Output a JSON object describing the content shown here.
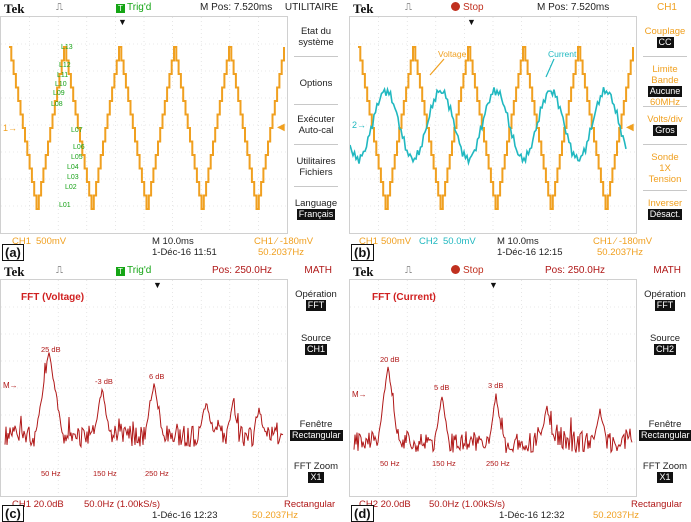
{
  "panels": {
    "a": {
      "label": "(a)",
      "tek": "Tek",
      "trig": "Trig'd",
      "mpos": "M Pos: 7.520ms",
      "side_title": "UTILITAIRE",
      "menu": [
        {
          "text": "Etat du",
          "text2": "système"
        },
        {
          "text": "Options"
        },
        {
          "text": "Exécuter",
          "text2": "Auto-cal"
        },
        {
          "text": "Utilitaires",
          "text2": "Fichiers"
        },
        {
          "text": "Language",
          "hl": "Français"
        }
      ],
      "bottom": {
        "ch1": "CH1",
        "ch1val": "500mV",
        "time": "M 10.0ms",
        "trigset": "CH1 ⁄ -180mV",
        "date": "1-Déc-16 11:51",
        "freq": "50.2037Hz"
      },
      "level_labels": [
        "L13",
        "L12",
        "L11",
        "L10",
        "L09",
        "L08",
        "L07",
        "L06",
        "L05",
        "L04",
        "L03",
        "L02",
        "L01"
      ],
      "ch_marker": "1→"
    },
    "b": {
      "label": "(b)",
      "tek": "Tek",
      "stop": "Stop",
      "mpos": "M Pos: 7.520ms",
      "side_title": "CH1",
      "menu": [
        {
          "text": "Couplage",
          "hl": "CC"
        },
        {
          "text": "Limite Bande",
          "hl": "Aucune",
          "text3": "60MHz"
        },
        {
          "text": "Volts/div",
          "hl": "Gros"
        },
        {
          "text": "Sonde",
          "text2": "1X",
          "text3": "Tension"
        },
        {
          "text": "Inverser",
          "hl": "Désact."
        }
      ],
      "bottom": {
        "ch1": "CH1",
        "ch1val": "500mV",
        "ch2": "CH2",
        "ch2val": "50.0mV",
        "time": "M 10.0ms",
        "trigset": "CH1 ⁄ -180mV",
        "date": "1-Déc-16 12:15",
        "freq": "50.2037Hz"
      },
      "voltage_label": "Voltage",
      "current_label": "Current",
      "ch_marker": "2→"
    },
    "c": {
      "label": "(c)",
      "tek": "Tek",
      "trig": "Trig'd",
      "pos": "Pos: 250.0Hz",
      "side_title": "MATH",
      "fft_title": "FFT (Voltage)",
      "menu": [
        {
          "text": "Opération",
          "hl": "FFT"
        },
        {
          "text": "Source",
          "hl": "CH1"
        },
        {
          "text": "Fenêtre",
          "hl": "Rectangular"
        },
        {
          "text": "FFT Zoom",
          "hl": "X1"
        }
      ],
      "bottom": {
        "ch": "CH1 20.0dB",
        "rate": "50.0Hz (1.00kS/s)",
        "window": "Rectangular",
        "date": "1-Déc-16 12:23",
        "freq": "50.2037Hz"
      },
      "peak_labels": [
        "25 dB",
        "-3 dB",
        "6 dB"
      ],
      "freq_labels": [
        "50 Hz",
        "150 Hz",
        "250 Hz"
      ],
      "ch_marker": "M→"
    },
    "d": {
      "label": "(d)",
      "tek": "Tek",
      "stop": "Stop",
      "pos": "Pos: 250.0Hz",
      "side_title": "MATH",
      "fft_title": "FFT (Current)",
      "menu": [
        {
          "text": "Opération",
          "hl": "FFT"
        },
        {
          "text": "Source",
          "hl": "CH2"
        },
        {
          "text": "Fenêtre",
          "hl": "Rectangular"
        },
        {
          "text": "FFT Zoom",
          "hl": "X1"
        }
      ],
      "bottom": {
        "ch": "CH2 20.0dB",
        "rate": "50.0Hz (1.00kS/s)",
        "window": "Rectangular",
        "date": "1-Déc-16 12:32",
        "freq": "50.2037Hz"
      },
      "peak_labels": [
        "20 dB",
        "5 dB",
        "3 dB"
      ],
      "freq_labels": [
        "50 Hz",
        "150 Hz",
        "250 Hz"
      ],
      "ch_marker": "M→"
    }
  },
  "colors": {
    "ch1": "#f0a020",
    "ch2": "#20b8c0",
    "math": "#b01818",
    "menu_hl": "#111111"
  }
}
